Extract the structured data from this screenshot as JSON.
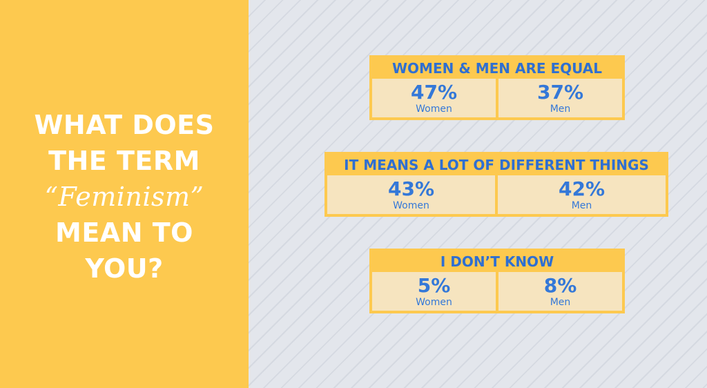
{
  "title": {
    "lines": [
      "WHAT DOES",
      "THE TERM",
      "“Feminism”",
      "MEAN TO",
      "YOU?"
    ]
  },
  "panels": [
    {
      "heading": "WOMEN & MEN ARE EQUAL",
      "cells": [
        {
          "value": "47%",
          "label": "Women"
        },
        {
          "value": "37%",
          "label": "Men"
        }
      ]
    },
    {
      "heading": "IT MEANS A LOT OF DIFFERENT THINGS",
      "cells": [
        {
          "value": "43%",
          "label": "Women"
        },
        {
          "value": "42%",
          "label": "Men"
        }
      ]
    },
    {
      "heading": "I DON’T KNOW",
      "cells": [
        {
          "value": "5%",
          "label": "Women"
        },
        {
          "value": "8%",
          "label": "Men"
        }
      ]
    }
  ]
}
